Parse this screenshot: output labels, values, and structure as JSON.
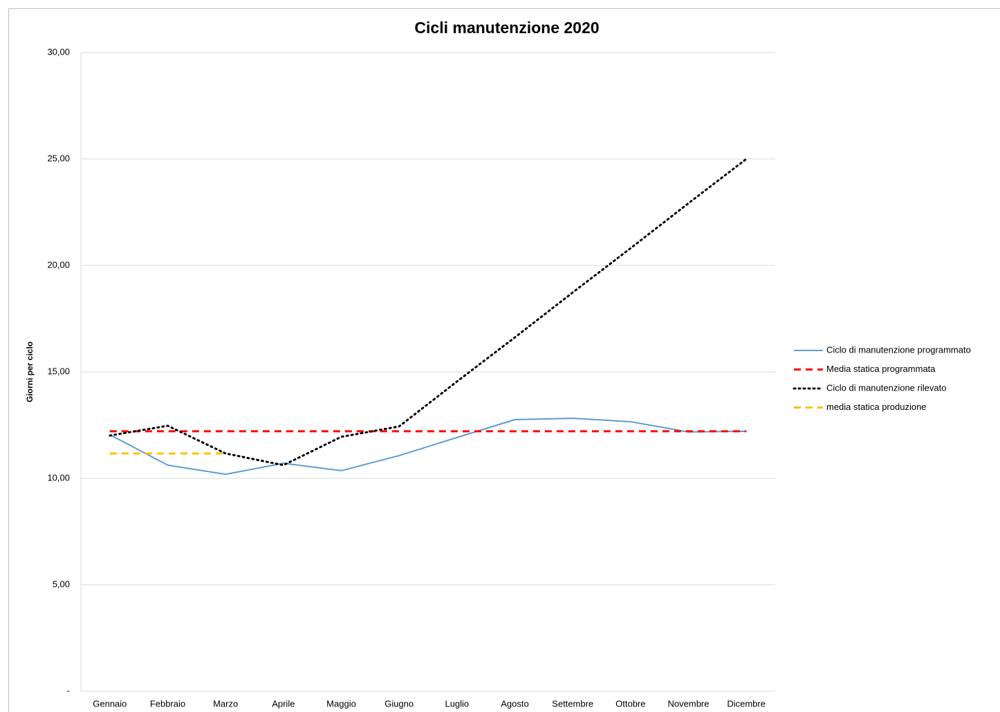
{
  "chart_data": {
    "type": "line",
    "title": "Cicli manutenzione 2020",
    "y_label": "Giorni per ciclo",
    "categories": [
      "Gennaio",
      "Febbraio",
      "Marzo",
      "Aprile",
      "Maggio",
      "Giugno",
      "Luglio",
      "Agosto",
      "Settembre",
      "Ottobre",
      "Novembre",
      "Dicembre"
    ],
    "series": [
      {
        "name": "Ciclo di manutenzione programmato",
        "color": "#5b9bd5",
        "style": "solid",
        "values": [
          12.05,
          10.62,
          10.19,
          10.71,
          10.36,
          11.07,
          11.92,
          12.76,
          12.82,
          12.66,
          12.18,
          12.21
        ]
      },
      {
        "name": "Media statica programmata",
        "color": "#ff0000",
        "style": "dashed",
        "values": [
          12.21,
          12.21,
          12.21,
          12.21,
          12.21,
          12.21,
          12.21,
          12.21,
          12.21,
          12.21,
          12.21,
          12.21
        ]
      },
      {
        "name": "Ciclo di manutenzione rilevato",
        "color": "#000000",
        "style": "dotted",
        "values": [
          12.01,
          12.47,
          11.17,
          10.62,
          11.95,
          12.44,
          14.55,
          16.62,
          18.73,
          20.81,
          22.92,
          25.0
        ]
      },
      {
        "name": "media statica produzione",
        "color": "#ffc000",
        "style": "dashed",
        "values": [
          11.17,
          11.17,
          11.17,
          null,
          null,
          null,
          null,
          null,
          null,
          null,
          null,
          null
        ]
      }
    ],
    "ylim": [
      0,
      30
    ],
    "yticks": [
      {
        "value": 0,
        "label": "-"
      },
      {
        "value": 5,
        "label": "5,00"
      },
      {
        "value": 10,
        "label": "10,00"
      },
      {
        "value": 15,
        "label": "15,00"
      },
      {
        "value": 20,
        "label": "20,00"
      },
      {
        "value": 25,
        "label": "25,00"
      },
      {
        "value": 30,
        "label": "30,00"
      }
    ],
    "grid": true,
    "legend": "right"
  }
}
